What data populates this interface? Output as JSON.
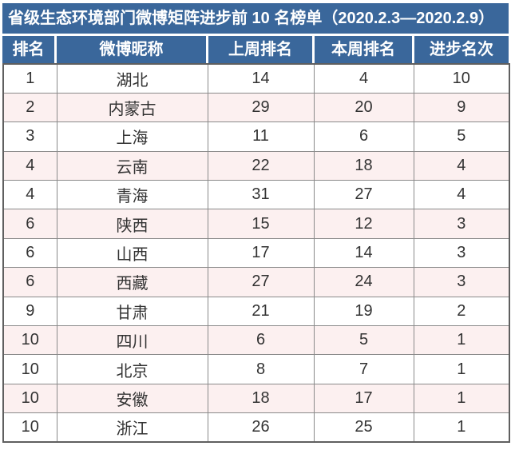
{
  "title": "省级生态环境部门微博矩阵进步前 10 名榜单（2020.2.3—2020.2.9）",
  "table": {
    "headers": [
      "排名",
      "微博昵称",
      "上周排名",
      "本周排名",
      "进步名次"
    ],
    "rows": [
      {
        "rank": "1",
        "name": "湖北",
        "last_week": "14",
        "this_week": "4",
        "progress": "10"
      },
      {
        "rank": "2",
        "name": "内蒙古",
        "last_week": "29",
        "this_week": "20",
        "progress": "9"
      },
      {
        "rank": "3",
        "name": "上海",
        "last_week": "11",
        "this_week": "6",
        "progress": "5"
      },
      {
        "rank": "4",
        "name": "云南",
        "last_week": "22",
        "this_week": "18",
        "progress": "4"
      },
      {
        "rank": "4",
        "name": "青海",
        "last_week": "31",
        "this_week": "27",
        "progress": "4"
      },
      {
        "rank": "6",
        "name": "陕西",
        "last_week": "15",
        "this_week": "12",
        "progress": "3"
      },
      {
        "rank": "6",
        "name": "山西",
        "last_week": "17",
        "this_week": "14",
        "progress": "3"
      },
      {
        "rank": "6",
        "name": "西藏",
        "last_week": "27",
        "this_week": "24",
        "progress": "3"
      },
      {
        "rank": "9",
        "name": "甘肃",
        "last_week": "21",
        "this_week": "19",
        "progress": "2"
      },
      {
        "rank": "10",
        "name": "四川",
        "last_week": "6",
        "this_week": "5",
        "progress": "1"
      },
      {
        "rank": "10",
        "name": "北京",
        "last_week": "8",
        "this_week": "7",
        "progress": "1"
      },
      {
        "rank": "10",
        "name": "安徽",
        "last_week": "18",
        "this_week": "17",
        "progress": "1"
      },
      {
        "rank": "10",
        "name": "浙江",
        "last_week": "26",
        "this_week": "25",
        "progress": "1"
      }
    ]
  },
  "colors": {
    "header_blue": "#3A679B",
    "stripe_pink": "#FCF0F0",
    "row_white": "#FFFFFF",
    "inner_border_gray": "#8A8A8A",
    "outer_border_gray": "#5F5F5F",
    "text_dark": "#333333",
    "text_white": "#FFFFFF"
  }
}
